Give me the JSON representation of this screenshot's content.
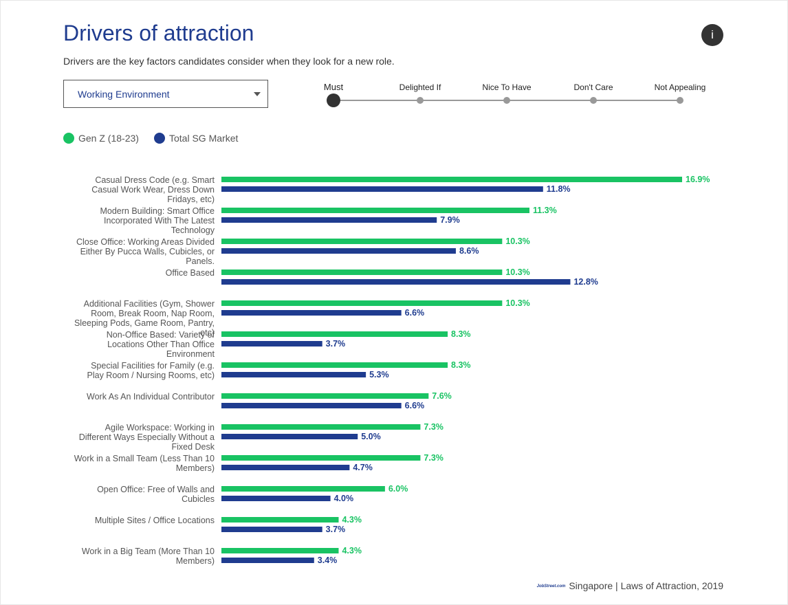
{
  "page": {
    "title": "Drivers of attraction",
    "subtitle": "Drivers are the key factors candidates consider when they look for a new role.",
    "info_icon": "i"
  },
  "dropdown": {
    "selected": "Working Environment"
  },
  "preference_scale": {
    "selected": "Must",
    "options": [
      "Must",
      "Delighted If",
      "Nice To Have",
      "Don't Care",
      "Not Appealing"
    ]
  },
  "legend": [
    {
      "label": "Gen Z (18-23)",
      "color": "#19c363"
    },
    {
      "label": "Total SG Market",
      "color": "#1f3c8f"
    }
  ],
  "footer": {
    "logo": "JobStreet.com",
    "text": "Singapore | Laws of Attraction, 2019"
  },
  "chart_data": {
    "type": "bar",
    "orientation": "horizontal",
    "value_suffix": "%",
    "xlim": [
      0,
      16.9
    ],
    "categories": [
      [
        "Casual Dress Code (e.g. Smart",
        "Casual Work Wear, Dress Down",
        "Fridays, etc)"
      ],
      [
        "Modern Building: Smart Office",
        "Incorporated With The Latest",
        "Technology"
      ],
      [
        "Close Office: Working Areas Divided",
        "Either By Pucca Walls, Cubicles, or",
        "Panels."
      ],
      [
        "Office Based"
      ],
      [
        "Additional Facilities (Gym, Shower",
        "Room, Break Room, Nap Room,",
        "Sleeping Pods, Game Room, Pantry,",
        "etc)"
      ],
      [
        "Non-Office Based: Variety of",
        "Locations Other Than Office",
        "Environment"
      ],
      [
        "Special Facilities for Family (e.g.",
        "Play Room / Nursing Rooms, etc)"
      ],
      [
        "Work As An Individual Contributor"
      ],
      [
        "Agile Workspace: Working in",
        "Different Ways Especially Without a",
        "Fixed Desk"
      ],
      [
        "Work in a Small Team (Less Than 10",
        "Members)"
      ],
      [
        "Open Office: Free of Walls and",
        "Cubicles"
      ],
      [
        "Multiple Sites / Office Locations"
      ],
      [
        "Work in a Big Team (More Than 10",
        "Members)"
      ]
    ],
    "series": [
      {
        "name": "Gen Z (18-23)",
        "color": "#19c363",
        "values": [
          16.9,
          11.3,
          10.3,
          10.3,
          10.3,
          8.3,
          8.3,
          7.6,
          7.3,
          7.3,
          6.0,
          4.3,
          4.3
        ]
      },
      {
        "name": "Total SG Market",
        "color": "#1f3c8f",
        "values": [
          11.8,
          7.9,
          8.6,
          12.8,
          6.6,
          3.7,
          5.3,
          6.6,
          5.0,
          4.7,
          4.0,
          3.7,
          3.4
        ]
      }
    ]
  }
}
